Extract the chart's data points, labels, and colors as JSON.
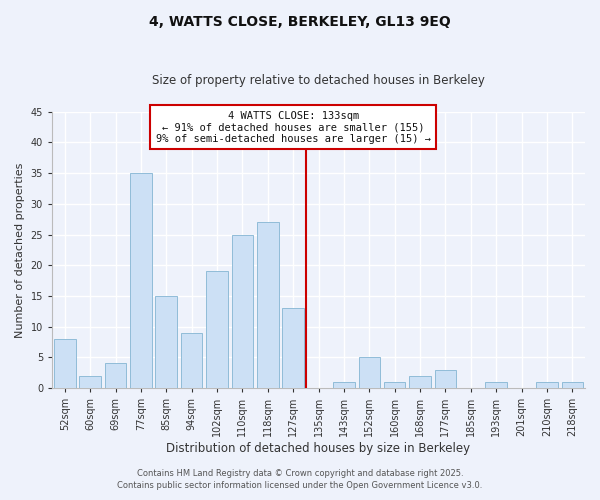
{
  "title": "4, WATTS CLOSE, BERKELEY, GL13 9EQ",
  "subtitle": "Size of property relative to detached houses in Berkeley",
  "xlabel": "Distribution of detached houses by size in Berkeley",
  "ylabel": "Number of detached properties",
  "categories": [
    "52sqm",
    "60sqm",
    "69sqm",
    "77sqm",
    "85sqm",
    "94sqm",
    "102sqm",
    "110sqm",
    "118sqm",
    "127sqm",
    "135sqm",
    "143sqm",
    "152sqm",
    "160sqm",
    "168sqm",
    "177sqm",
    "185sqm",
    "193sqm",
    "201sqm",
    "210sqm",
    "218sqm"
  ],
  "values": [
    8,
    2,
    4,
    35,
    15,
    9,
    19,
    25,
    27,
    13,
    0,
    1,
    5,
    1,
    2,
    3,
    0,
    1,
    0,
    1,
    1
  ],
  "bar_color": "#cce0f5",
  "bar_edge_color": "#90bcd8",
  "vline_color": "#cc0000",
  "annotation_title": "4 WATTS CLOSE: 133sqm",
  "annotation_line1": "← 91% of detached houses are smaller (155)",
  "annotation_line2": "9% of semi-detached houses are larger (15) →",
  "annotation_box_color": "#ffffff",
  "annotation_box_edge": "#cc0000",
  "ylim": [
    0,
    45
  ],
  "footer1": "Contains HM Land Registry data © Crown copyright and database right 2025.",
  "footer2": "Contains public sector information licensed under the Open Government Licence v3.0.",
  "background_color": "#eef2fb",
  "plot_background_color": "#eef2fb",
  "grid_color": "#ffffff",
  "title_fontsize": 10,
  "subtitle_fontsize": 8.5,
  "ylabel_fontsize": 8,
  "xlabel_fontsize": 8.5,
  "tick_fontsize": 7,
  "annotation_fontsize": 7.5,
  "footer_fontsize": 6
}
